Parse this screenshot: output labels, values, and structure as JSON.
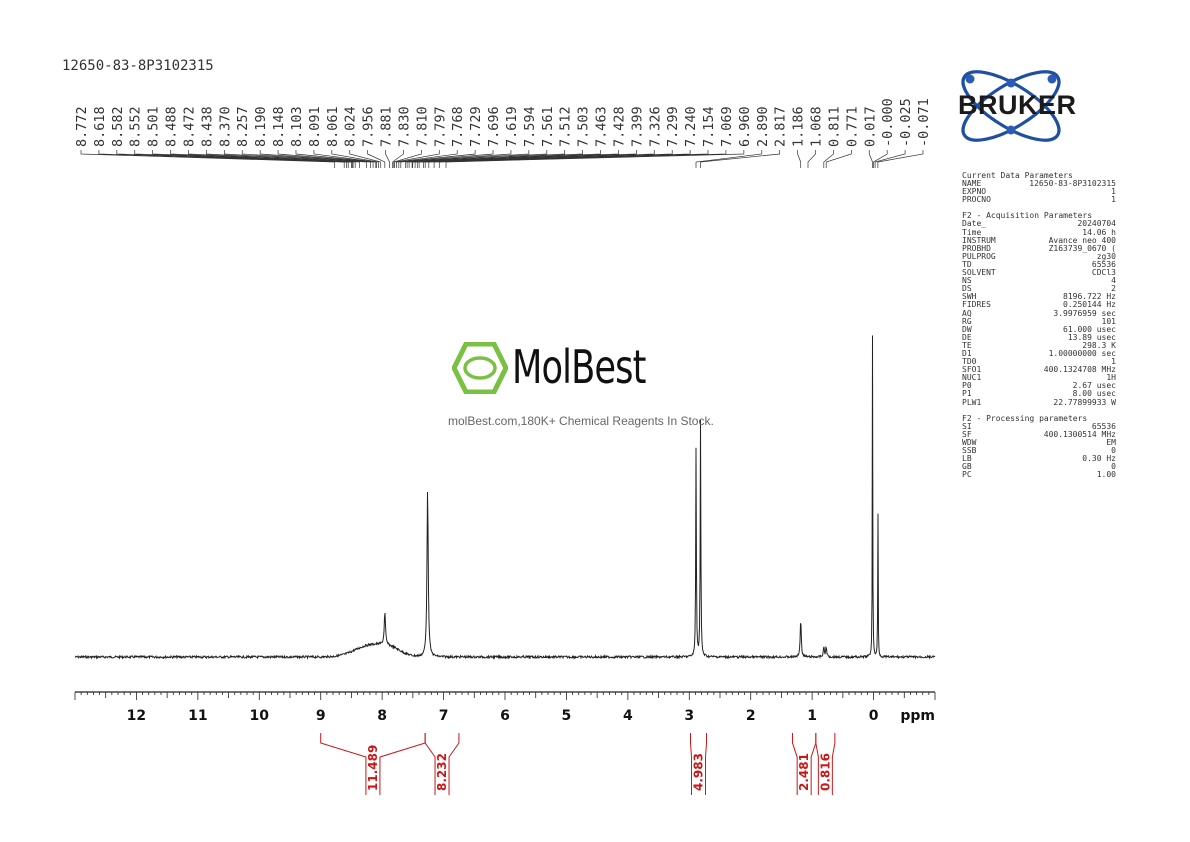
{
  "sample_id": "12650-83-8P3102315",
  "brand": {
    "name": "BRUKER",
    "accent_color": "#1f4fa0",
    "dot_color": "#2a5cb8"
  },
  "watermark": {
    "name": "MolBest",
    "tagline": "molBest.com,180K+ Chemical Reagents In Stock.",
    "logo_color": "#7ac143"
  },
  "parameters": {
    "current": {
      "title": "Current Data Parameters",
      "rows": [
        {
          "key": "NAME",
          "value": "12650-83-8P3102315"
        },
        {
          "key": "EXPNO",
          "value": "1"
        },
        {
          "key": "PROCNO",
          "value": "1"
        }
      ]
    },
    "acquisition": {
      "title": "F2 - Acquisition Parameters",
      "rows": [
        {
          "key": "Date_",
          "value": "20240704"
        },
        {
          "key": "Time",
          "value": "14.06 h"
        },
        {
          "key": "INSTRUM",
          "value": "Avance neo 400"
        },
        {
          "key": "PROBHD",
          "value": "Z163739_0670 ("
        },
        {
          "key": "PULPROG",
          "value": "zg30"
        },
        {
          "key": "TD",
          "value": "65536"
        },
        {
          "key": "SOLVENT",
          "value": "CDCl3"
        },
        {
          "key": "NS",
          "value": "4"
        },
        {
          "key": "DS",
          "value": "2"
        },
        {
          "key": "SWH",
          "value": "8196.722 Hz"
        },
        {
          "key": "FIDRES",
          "value": "0.250144 Hz"
        },
        {
          "key": "AQ",
          "value": "3.9976959 sec"
        },
        {
          "key": "RG",
          "value": "101"
        },
        {
          "key": "DW",
          "value": "61.000 usec"
        },
        {
          "key": "DE",
          "value": "13.89 usec"
        },
        {
          "key": "TE",
          "value": "298.3 K"
        },
        {
          "key": "D1",
          "value": "1.00000000 sec"
        },
        {
          "key": "TD0",
          "value": "1"
        },
        {
          "key": "SFO1",
          "value": "400.1324708 MHz"
        },
        {
          "key": "NUC1",
          "value": "1H"
        },
        {
          "key": "P0",
          "value": "2.67 usec"
        },
        {
          "key": "P1",
          "value": "8.00 usec"
        },
        {
          "key": "PLW1",
          "value": "22.77899933 W"
        }
      ]
    },
    "processing": {
      "title": "F2 - Processing parameters",
      "rows": [
        {
          "key": "SI",
          "value": "65536"
        },
        {
          "key": "SF",
          "value": "400.1300514 MHz"
        },
        {
          "key": "WDW",
          "value": "EM"
        },
        {
          "key": "SSB",
          "value": "0"
        },
        {
          "key": "LB",
          "value": "0.30 Hz"
        },
        {
          "key": "GB",
          "value": "0"
        },
        {
          "key": "PC",
          "value": "1.00"
        }
      ]
    }
  },
  "chart_data": {
    "type": "line",
    "x_unit": "ppm",
    "xlim": [
      13.0,
      -1.0
    ],
    "x_reversed": true,
    "ticks": [
      12,
      11,
      10,
      9,
      8,
      7,
      6,
      5,
      4,
      3,
      2,
      1,
      0
    ],
    "tick_labels": [
      "12",
      "11",
      "10",
      "9",
      "8",
      "7",
      "6",
      "5",
      "4",
      "3",
      "2",
      "1",
      "0"
    ],
    "peak_labels": [
      "8.772",
      "8.618",
      "8.582",
      "8.552",
      "8.501",
      "8.488",
      "8.472",
      "8.438",
      "8.370",
      "8.257",
      "8.190",
      "8.148",
      "8.103",
      "8.091",
      "8.061",
      "8.024",
      "7.956",
      "7.881",
      "7.830",
      "7.810",
      "7.797",
      "7.768",
      "7.729",
      "7.696",
      "7.619",
      "7.594",
      "7.561",
      "7.512",
      "7.503",
      "7.463",
      "7.428",
      "7.399",
      "7.326",
      "7.299",
      "7.240",
      "7.154",
      "7.069",
      "6.960",
      "2.890",
      "2.817",
      "1.186",
      "1.068",
      "0.811",
      "0.771",
      "0.017",
      "-0.000",
      "-0.025",
      "-0.071"
    ],
    "series": [
      {
        "peaks": [
          {
            "ppm": 7.956,
            "height": 0.1,
            "width": 0.012
          },
          {
            "ppm": 7.26,
            "height": 0.52,
            "width": 0.012
          },
          {
            "ppm": 2.89,
            "height": 0.65,
            "width": 0.006
          },
          {
            "ppm": 2.817,
            "height": 0.73,
            "width": 0.006
          },
          {
            "ppm": 1.186,
            "height": 0.12,
            "width": 0.01
          },
          {
            "ppm": 0.811,
            "height": 0.03,
            "width": 0.01
          },
          {
            "ppm": 0.771,
            "height": 0.03,
            "width": 0.01
          },
          {
            "ppm": 0.017,
            "height": 1.0,
            "width": 0.004
          },
          {
            "ppm": -0.071,
            "height": 0.47,
            "width": 0.004
          }
        ],
        "broad": [
          {
            "ppm": 8.2,
            "height": 0.035,
            "width": 0.35
          },
          {
            "ppm": 7.85,
            "height": 0.02,
            "width": 0.25
          }
        ]
      }
    ],
    "integrals": [
      {
        "from": 9.0,
        "to": 7.3,
        "value": "11.489"
      },
      {
        "from": 7.3,
        "to": 6.75,
        "value": "8.232"
      },
      {
        "from": 2.98,
        "to": 2.72,
        "value": "4.983"
      },
      {
        "from": 1.32,
        "to": 0.94,
        "value": "2.481"
      },
      {
        "from": 0.94,
        "to": 0.63,
        "value": "0.816"
      }
    ],
    "line_color": "#222222",
    "integral_color": "#c81818"
  }
}
